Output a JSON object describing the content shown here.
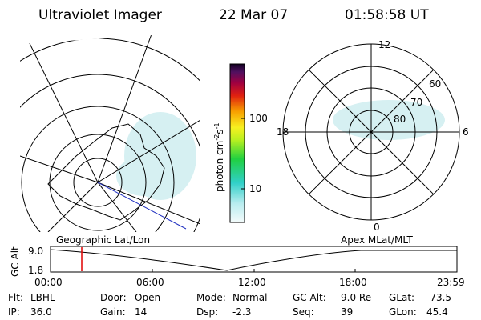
{
  "header": {
    "instrument": "Ultraviolet Imager",
    "date": "22 Mar 07",
    "time": "01:58:58 UT"
  },
  "colorbar": {
    "label": "photon cm",
    "exp1": "-2",
    "unit2": "s",
    "exp2": "-1",
    "ticks": [
      "100",
      "10"
    ]
  },
  "polar_plot": {
    "mlt_labels": [
      "12",
      "18",
      "6",
      "0"
    ],
    "lat_labels": [
      "60",
      "70",
      "80"
    ]
  },
  "timeline": {
    "left_caption": "Geographic Lat/Lon",
    "right_caption": "Apex MLat/MLT",
    "y_label": "GC Alt",
    "yticks": [
      "9.0",
      "1.8"
    ],
    "xticks": [
      "00:00",
      "06:00",
      "12:00",
      "18:00",
      "23:59"
    ]
  },
  "status": {
    "rows": [
      [
        [
          "Flt:",
          "LBHL"
        ],
        [
          "Door:",
          "Open"
        ],
        [
          "Mode:",
          "Normal"
        ],
        [
          "GC Alt:",
          "9.0 Re"
        ],
        [
          "GLat:",
          "-73.5"
        ]
      ],
      [
        [
          "IP:",
          "36.0"
        ],
        [
          "Gain:",
          "14"
        ],
        [
          "Dsp:",
          "-2.3"
        ],
        [
          "Seq:",
          "39"
        ],
        [
          "GLon:",
          "45.4"
        ]
      ]
    ]
  }
}
